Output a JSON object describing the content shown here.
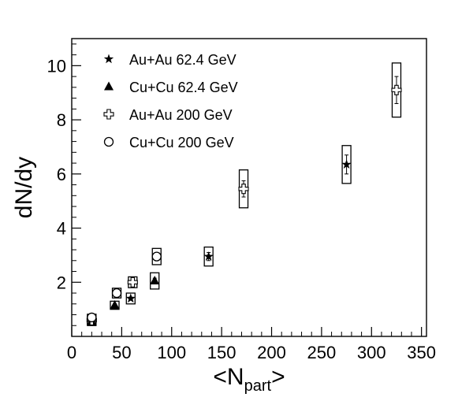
{
  "chart_data": {
    "type": "scatter",
    "title": "",
    "xlabel": "<N",
    "xlabel_sub": "part",
    "xlabel_suffix": ">",
    "ylabel": "dN/dy",
    "xlim": [
      0,
      355
    ],
    "ylim": [
      0,
      11
    ],
    "x_ticks": [
      0,
      50,
      100,
      150,
      200,
      250,
      300,
      350
    ],
    "y_ticks": [
      2,
      4,
      6,
      8,
      10
    ],
    "grid": false,
    "legend_position": "top-left",
    "series": [
      {
        "name": "Au+Au 62.4 GeV",
        "marker": "star",
        "points": [
          {
            "x": 20,
            "y": 0.55,
            "err": 0.05,
            "sys": 0.15
          },
          {
            "x": 59,
            "y": 1.4,
            "err": 0.05,
            "sys": 0.2
          },
          {
            "x": 137,
            "y": 2.95,
            "err": 0.15,
            "sys": 0.35
          },
          {
            "x": 275,
            "y": 6.35,
            "err": 0.35,
            "sys": 0.7
          }
        ]
      },
      {
        "name": "Cu+Cu 62.4 GeV",
        "marker": "triangle",
        "points": [
          {
            "x": 20,
            "y": 0.55,
            "err": 0.05,
            "sys": 0.12
          },
          {
            "x": 43,
            "y": 1.15,
            "err": 0.05,
            "sys": 0.15
          },
          {
            "x": 83,
            "y": 2.05,
            "err": 0.1,
            "sys": 0.3
          }
        ]
      },
      {
        "name": "Au+Au 200  GeV",
        "marker": "cross-open",
        "points": [
          {
            "x": 20,
            "y": 0.6,
            "err": 0.05,
            "sys": 0.15
          },
          {
            "x": 61,
            "y": 2.0,
            "err": 0.1,
            "sys": 0.2
          },
          {
            "x": 172,
            "y": 5.45,
            "err": 0.3,
            "sys": 0.7
          },
          {
            "x": 325,
            "y": 9.1,
            "err": 0.5,
            "sys": 1.0
          }
        ]
      },
      {
        "name": "Cu+Cu 200 GeV",
        "marker": "circle-open",
        "points": [
          {
            "x": 20,
            "y": 0.7,
            "err": 0.05,
            "sys": 0.12
          },
          {
            "x": 45,
            "y": 1.6,
            "err": 0.08,
            "sys": 0.18
          },
          {
            "x": 85,
            "y": 2.95,
            "err": 0.15,
            "sys": 0.3
          }
        ]
      }
    ]
  }
}
